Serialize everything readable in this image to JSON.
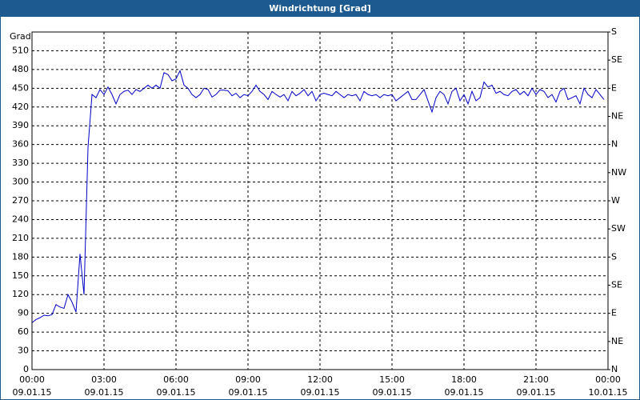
{
  "chart_data": {
    "type": "line",
    "title": "Windrichtung [Grad]",
    "y_label": "Grad",
    "xlim": [
      0,
      1440
    ],
    "xticks": [
      {
        "value": 0,
        "label": "00:00",
        "sublabel": "09.01.15"
      },
      {
        "value": 180,
        "label": "03:00",
        "sublabel": "09.01.15"
      },
      {
        "value": 360,
        "label": "06:00",
        "sublabel": "09.01.15"
      },
      {
        "value": 540,
        "label": "09:00",
        "sublabel": "09.01.15"
      },
      {
        "value": 720,
        "label": "12:00",
        "sublabel": "09.01.15"
      },
      {
        "value": 900,
        "label": "15:00",
        "sublabel": "09.01.15"
      },
      {
        "value": 1080,
        "label": "18:00",
        "sublabel": "09.01.15"
      },
      {
        "value": 1260,
        "label": "21:00",
        "sublabel": "09.01.15"
      },
      {
        "value": 1440,
        "label": "00:00",
        "sublabel": "10.01.15"
      }
    ],
    "ylim": [
      0,
      540
    ],
    "yticks": [
      0,
      30,
      60,
      90,
      120,
      150,
      180,
      210,
      240,
      270,
      300,
      330,
      360,
      390,
      420,
      450,
      480,
      510
    ],
    "y2lim": [
      0,
      540
    ],
    "y2ticks": [
      {
        "value": 0,
        "label": "N"
      },
      {
        "value": 45,
        "label": "NE"
      },
      {
        "value": 90,
        "label": "E"
      },
      {
        "value": 135,
        "label": "SE"
      },
      {
        "value": 180,
        "label": "S"
      },
      {
        "value": 225,
        "label": "SW"
      },
      {
        "value": 270,
        "label": "W"
      },
      {
        "value": 315,
        "label": "NW"
      },
      {
        "value": 360,
        "label": "N"
      },
      {
        "value": 405,
        "label": "NE"
      },
      {
        "value": 450,
        "label": "E"
      },
      {
        "value": 495,
        "label": "SE"
      },
      {
        "value": 540,
        "label": "S"
      }
    ],
    "grid": true,
    "x": [
      0,
      10,
      20,
      30,
      40,
      50,
      60,
      70,
      80,
      90,
      100,
      110,
      120,
      130,
      140,
      150,
      160,
      170,
      180,
      190,
      200,
      210,
      220,
      230,
      240,
      250,
      260,
      270,
      280,
      290,
      300,
      310,
      320,
      330,
      340,
      350,
      360,
      370,
      380,
      390,
      400,
      410,
      420,
      430,
      440,
      450,
      460,
      470,
      480,
      490,
      500,
      510,
      520,
      530,
      540,
      550,
      560,
      570,
      580,
      590,
      600,
      610,
      620,
      630,
      640,
      650,
      660,
      670,
      680,
      690,
      700,
      710,
      720,
      730,
      740,
      750,
      760,
      770,
      780,
      790,
      800,
      810,
      820,
      830,
      840,
      850,
      860,
      870,
      880,
      890,
      900,
      910,
      920,
      930,
      940,
      950,
      960,
      970,
      980,
      990,
      1000,
      1010,
      1020,
      1030,
      1040,
      1050,
      1060,
      1070,
      1080,
      1090,
      1100,
      1110,
      1120,
      1130,
      1140,
      1150,
      1160,
      1170,
      1180,
      1190,
      1200,
      1210,
      1220,
      1230,
      1240,
      1250,
      1260,
      1270,
      1280,
      1290,
      1300,
      1310,
      1320,
      1330,
      1340,
      1350,
      1360,
      1370,
      1380,
      1390,
      1400,
      1410,
      1420,
      1430
    ],
    "series": [
      {
        "name": "Windrichtung",
        "color": "#0000c8",
        "values": [
          75,
          80,
          83,
          87,
          86,
          88,
          104,
          100,
          98,
          120,
          108,
          92,
          185,
          120,
          355,
          440,
          435,
          448,
          440,
          452,
          440,
          425,
          440,
          445,
          447,
          440,
          448,
          445,
          450,
          455,
          450,
          455,
          450,
          475,
          472,
          462,
          465,
          478,
          455,
          450,
          440,
          435,
          440,
          450,
          448,
          436,
          440,
          447,
          447,
          446,
          438,
          442,
          435,
          440,
          438,
          445,
          455,
          445,
          440,
          432,
          445,
          440,
          436,
          440,
          430,
          445,
          438,
          442,
          448,
          438,
          445,
          430,
          440,
          442,
          440,
          438,
          445,
          440,
          435,
          440,
          438,
          440,
          430,
          445,
          440,
          438,
          440,
          435,
          440,
          438,
          440,
          430,
          435,
          440,
          445,
          432,
          432,
          440,
          448,
          430,
          412,
          435,
          445,
          440,
          425,
          445,
          450,
          430,
          440,
          425,
          445,
          430,
          435,
          460,
          452,
          455,
          442,
          445,
          440,
          438,
          445,
          448,
          440,
          445,
          438,
          450,
          440,
          448,
          445,
          435,
          440,
          428,
          445,
          450,
          432,
          435,
          438,
          425,
          450,
          440,
          435,
          448,
          440,
          432
        ]
      }
    ]
  }
}
